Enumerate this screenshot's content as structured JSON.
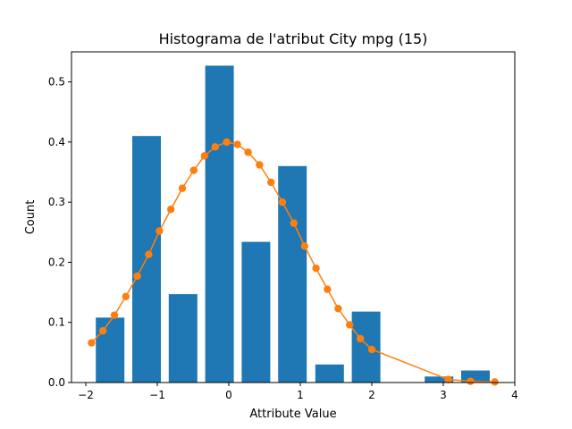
{
  "chart_data": {
    "type": "bar",
    "title": "Histograma de l'atribut City mpg (15)",
    "xlabel": "Attribute Value",
    "ylabel": "Count",
    "xlim": [
      -2.2,
      4.0
    ],
    "ylim": [
      0,
      0.55
    ],
    "xticks": [
      -2,
      -1,
      0,
      1,
      2,
      3,
      4
    ],
    "xtick_labels": [
      "−2",
      "−1",
      "0",
      "1",
      "2",
      "3",
      "4"
    ],
    "yticks": [
      0.0,
      0.1,
      0.2,
      0.3,
      0.4,
      0.5
    ],
    "ytick_labels": [
      "0.0",
      "0.1",
      "0.2",
      "0.3",
      "0.4",
      "0.5"
    ],
    "grid": false,
    "bar_color": "#1f77b4",
    "line_color": "#ff7f0e",
    "bar_width": 0.4,
    "bars": {
      "x": [
        -1.66,
        -1.15,
        -0.64,
        -0.13,
        0.38,
        0.89,
        1.41,
        1.92,
        2.94,
        3.45
      ],
      "values": [
        0.108,
        0.41,
        0.147,
        0.527,
        0.234,
        0.36,
        0.03,
        0.118,
        0.01,
        0.02
      ]
    },
    "curve": {
      "x": [
        -1.92,
        -1.76,
        -1.6,
        -1.44,
        -1.28,
        -1.12,
        -0.97,
        -0.81,
        -0.65,
        -0.49,
        -0.34,
        -0.19,
        -0.03,
        0.12,
        0.27,
        0.43,
        0.59,
        0.75,
        0.91,
        1.06,
        1.22,
        1.38,
        1.53,
        1.69,
        1.84,
        2.0,
        3.07,
        3.38,
        3.72
      ],
      "y": [
        0.066,
        0.086,
        0.112,
        0.143,
        0.177,
        0.213,
        0.252,
        0.288,
        0.323,
        0.353,
        0.377,
        0.392,
        0.4,
        0.396,
        0.383,
        0.362,
        0.333,
        0.3,
        0.265,
        0.227,
        0.19,
        0.155,
        0.123,
        0.096,
        0.073,
        0.055,
        0.005,
        0.002,
        0.001
      ]
    }
  }
}
